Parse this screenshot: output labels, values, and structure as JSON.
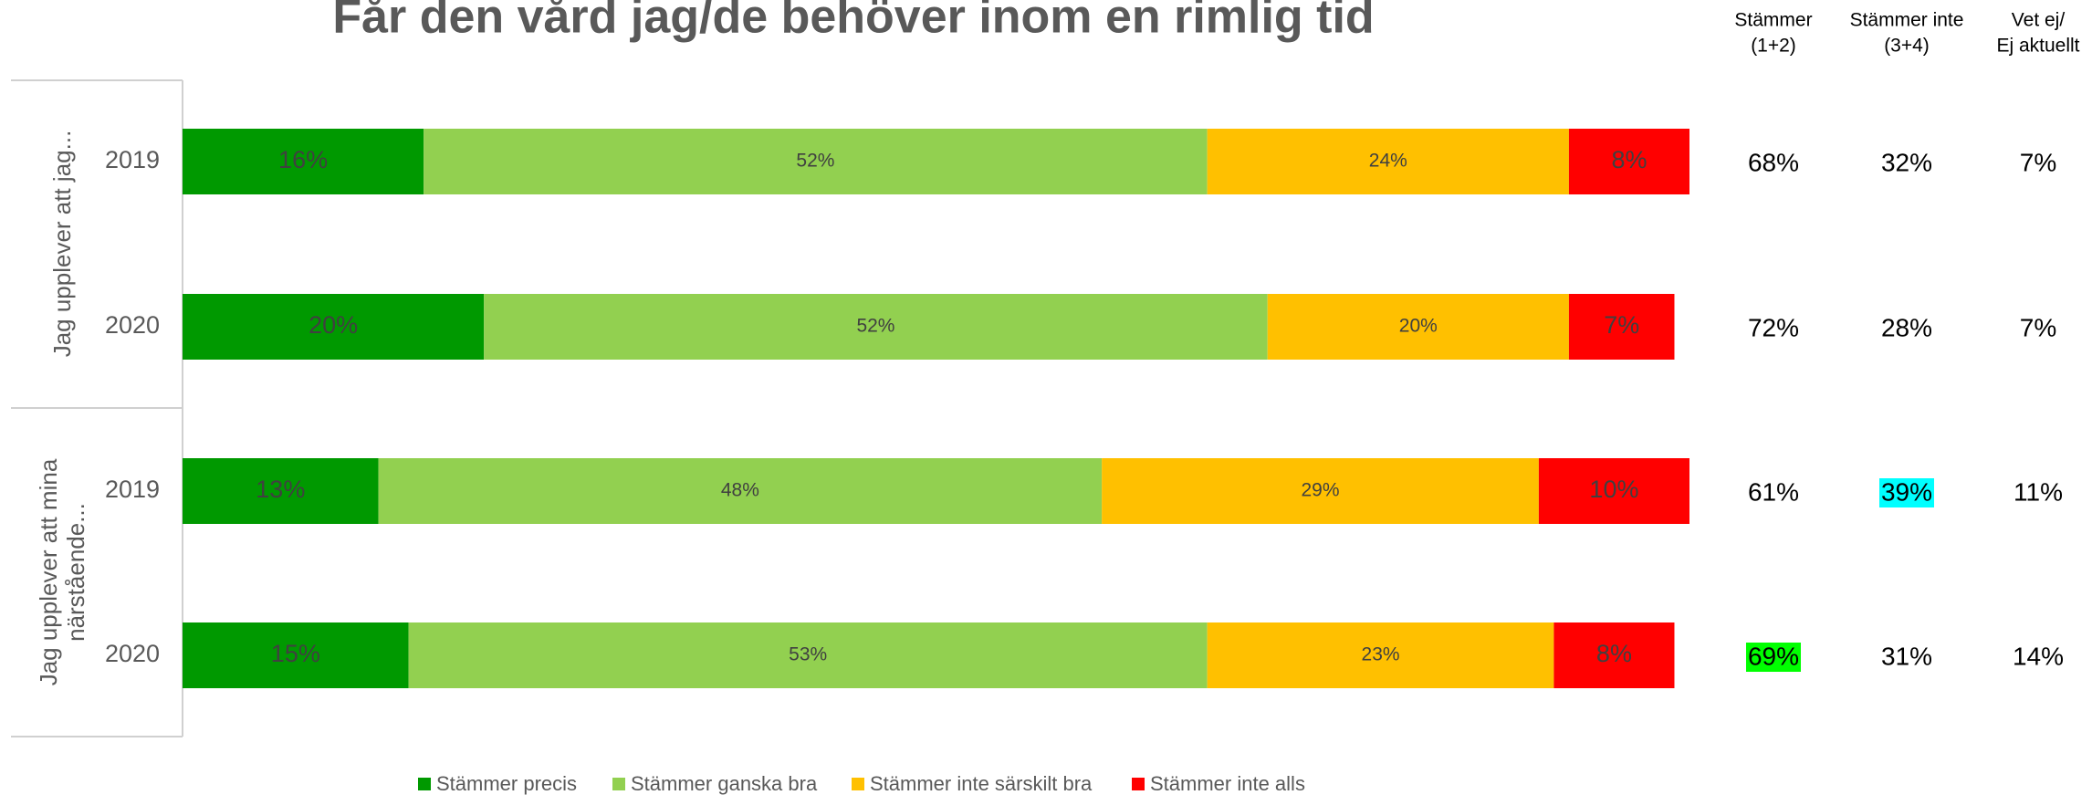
{
  "chart_data": {
    "type": "stacked_bar_horizontal",
    "title": "Får den vård jag/de behöver inom en rimlig tid",
    "groups": [
      [
        "Jag upplever att jag..."
      ],
      [
        "Jag upplever att mina",
        "närstående..."
      ]
    ],
    "categories": [
      "2019",
      "2020",
      "2019",
      "2020"
    ],
    "xlim": [
      0,
      100
    ],
    "legend": "bottom",
    "series": [
      {
        "name": "Stämmer precis",
        "color": "#009900",
        "values": [
          16,
          20,
          13,
          15
        ],
        "value_labels": [
          "16%",
          "20%",
          "13%",
          "15%"
        ]
      },
      {
        "name": "Stämmer ganska bra",
        "color": "#92d050",
        "values": [
          52,
          52,
          48,
          53
        ],
        "value_labels": [
          "52%",
          "52%",
          "48%",
          "53%"
        ]
      },
      {
        "name": "Stämmer inte särskilt bra",
        "color": "#ffc000",
        "values": [
          24,
          20,
          29,
          23
        ],
        "value_labels": [
          "24%",
          "20%",
          "29%",
          "23%"
        ]
      },
      {
        "name": "Stämmer inte alls",
        "color": "#ff0000",
        "values": [
          8,
          7,
          10,
          8
        ],
        "value_labels": [
          "8%",
          "7%",
          "10%",
          "8%"
        ]
      }
    ]
  },
  "summary": {
    "headers": [
      [
        "Stämmer",
        "(1+2)"
      ],
      [
        "Stämmer inte",
        "(3+4)"
      ],
      [
        "Vet ej/",
        "Ej aktuellt"
      ]
    ],
    "rows": [
      [
        "68%",
        "32%",
        "7%"
      ],
      [
        "72%",
        "28%",
        "7%"
      ],
      [
        "61%",
        "39%",
        "11%"
      ],
      [
        "69%",
        "31%",
        "14%"
      ]
    ],
    "highlights": [
      {
        "row": 2,
        "col": 1,
        "color": "#00ffff"
      },
      {
        "row": 3,
        "col": 0,
        "color": "#00ff00"
      }
    ]
  }
}
